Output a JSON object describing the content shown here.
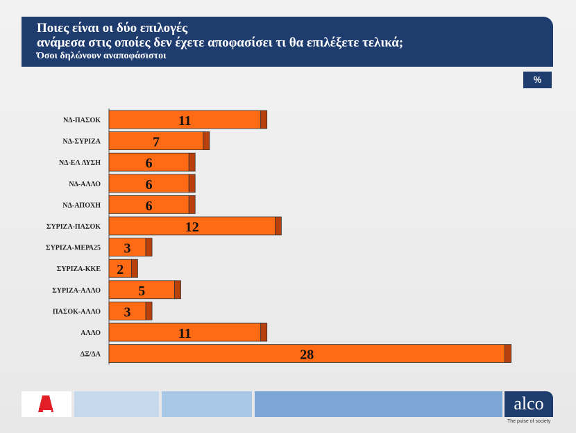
{
  "header": {
    "line1": "Ποιες είναι οι δύο επιλογές",
    "line2": "ανάμεσα στις οποίες δεν έχετε αποφασίσει τι θα επιλέξετε τελικά;",
    "line3": "Όσοι δηλώνουν αναποφάσιστοι"
  },
  "unit_badge": "%",
  "footer": {
    "brand": "alco",
    "tagline": "The pulse of society",
    "left_logo": "ALPHA NEWS"
  },
  "colors": {
    "header_bg": "#1f3c6e",
    "bar_fill": "#ff6a14",
    "bar_cap": "#b8400c"
  },
  "chart_data": {
    "type": "bar",
    "orientation": "horizontal",
    "categories": [
      "ΝΔ-ΠΑΣΟΚ",
      "ΝΔ-ΣΥΡΙΖΑ",
      "ΝΔ-ΕΛ ΛΥΣΗ",
      "ΝΔ-ΑΛΛΟ",
      "ΝΔ-ΑΠΟΧΗ",
      "ΣΥΡΙΖΑ-ΠΑΣΟΚ",
      "ΣΥΡΙΖΑ-ΜΕΡΑ25",
      "ΣΥΡΙΖΑ-ΚΚΕ",
      "ΣΥΡΙΖΑ-ΑΛΛΟ",
      "ΠΑΣΟΚ-ΑΛΛΟ",
      "ΑΛΛΟ",
      "ΔΞ/ΔΑ"
    ],
    "values": [
      11,
      7,
      6,
      6,
      6,
      12,
      3,
      2,
      5,
      3,
      11,
      28
    ],
    "xlim": [
      0,
      28
    ],
    "grid": false,
    "legend": "none",
    "data_labels": true
  }
}
